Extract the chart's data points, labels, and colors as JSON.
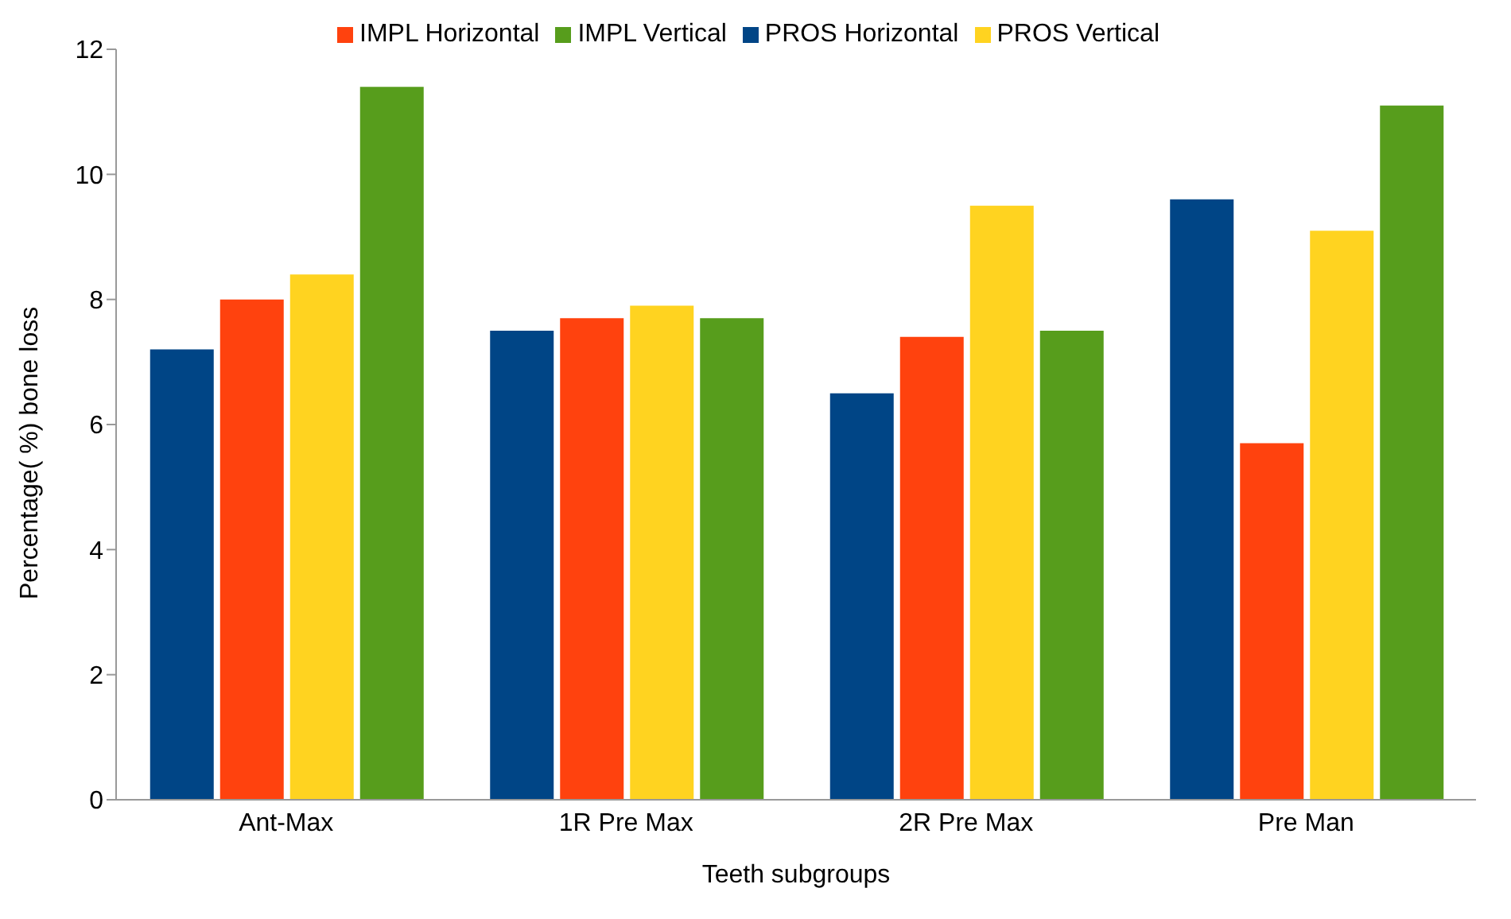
{
  "chart_data": {
    "type": "bar",
    "xlabel": "Teeth subgroups",
    "ylabel": "Percentage( %) bone loss",
    "categories": [
      "Ant-Max",
      "1R Pre Max",
      "2R Pre Max",
      "Pre Man"
    ],
    "series": [
      {
        "name": "PROS Horizontal",
        "color": "#004586",
        "values": [
          7.2,
          7.5,
          6.5,
          9.6
        ]
      },
      {
        "name": "IMPL Horizontal",
        "color": "#ff420e",
        "values": [
          8.0,
          7.7,
          7.4,
          5.7
        ]
      },
      {
        "name": "PROS Vertical",
        "color": "#ffd320",
        "values": [
          8.4,
          7.9,
          9.5,
          9.1
        ]
      },
      {
        "name": "IMPL Vertical",
        "color": "#579d1c",
        "values": [
          11.4,
          7.7,
          7.5,
          11.1
        ]
      }
    ],
    "ylim": [
      0,
      12
    ],
    "yticks": [
      0,
      2,
      4,
      6,
      8,
      10,
      12
    ],
    "grid": false,
    "legend": "top"
  }
}
